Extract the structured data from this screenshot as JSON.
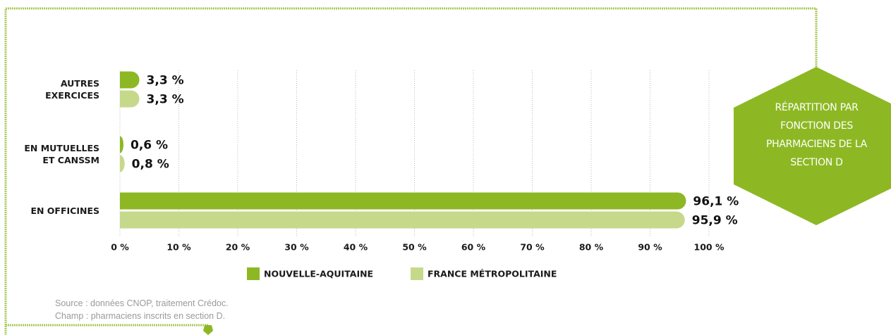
{
  "chart_data": {
    "type": "bar",
    "orientation": "horizontal",
    "title": "RÉPARTITION PAR FONCTION DES PHARMACIENS DE LA SECTION D",
    "categories": [
      "AUTRES\nEXERCICES",
      "EN MUTUELLES\nET CANSSM",
      "EN OFFICINES"
    ],
    "series": [
      {
        "name": "NOUVELLE-AQUITAINE",
        "color": "#8db824",
        "values": [
          3.3,
          0.6,
          96.1
        ],
        "value_labels": [
          "3,3 %",
          "0,6 %",
          "96,1 %"
        ]
      },
      {
        "name": "FRANCE MÉTROPOLITAINE",
        "color": "#c6d98b",
        "values": [
          3.3,
          0.8,
          95.9
        ],
        "value_labels": [
          "3,3 %",
          "0,8 %",
          "95,9 %"
        ]
      }
    ],
    "xlim": [
      0,
      100
    ],
    "xticks": [
      {
        "value": 0,
        "label": "0 %"
      },
      {
        "value": 10,
        "label": "10 %"
      },
      {
        "value": 20,
        "label": "20 %"
      },
      {
        "value": 30,
        "label": "30 %"
      },
      {
        "value": 40,
        "label": "40 %"
      },
      {
        "value": 50,
        "label": "50 %"
      },
      {
        "value": 60,
        "label": "60 %"
      },
      {
        "value": 70,
        "label": "70 %"
      },
      {
        "value": 80,
        "label": "80 %"
      },
      {
        "value": 90,
        "label": "90 %"
      },
      {
        "value": 100,
        "label": "100 %"
      }
    ],
    "grid": true,
    "notes": [
      "Source : données CNOP, traitement Crédoc.",
      "Champ : pharmaciens inscrits en section D."
    ]
  }
}
